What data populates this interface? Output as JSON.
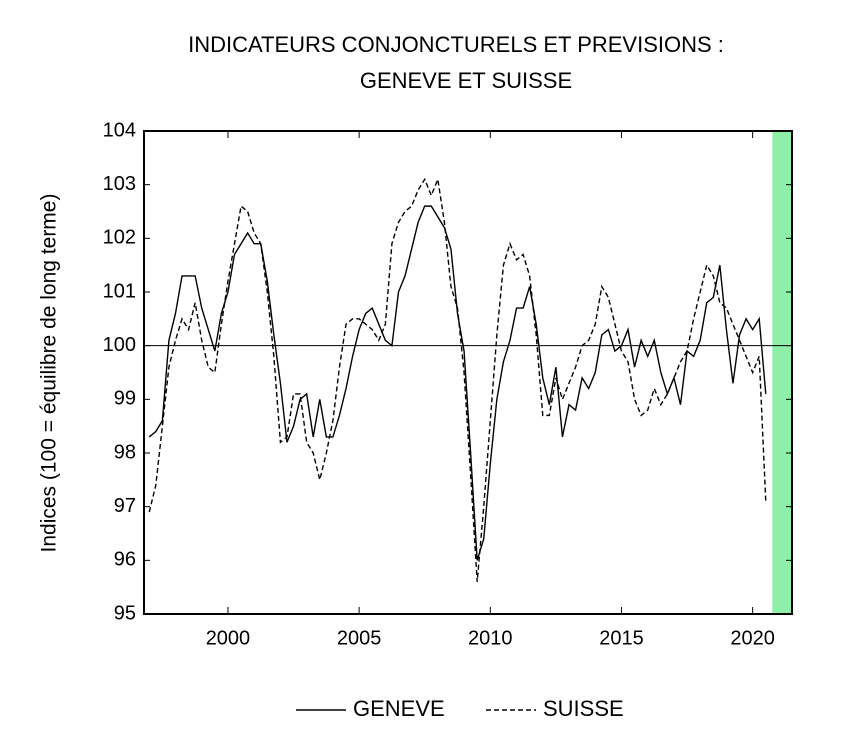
{
  "chart_data": {
    "type": "line",
    "title": [
      "INDICATEURS CONJONCTURELS ET PREVISIONS :",
      "GENEVE ET SUISSE"
    ],
    "ylabel": "Indices (100 = équilibre de long terme)",
    "x": [
      1997,
      1997.25,
      1997.5,
      1997.75,
      1998,
      1998.25,
      1998.5,
      1998.75,
      1999,
      1999.25,
      1999.5,
      1999.75,
      2000,
      2000.25,
      2000.5,
      2000.75,
      2001,
      2001.25,
      2001.5,
      2001.75,
      2002,
      2002.25,
      2002.5,
      2002.75,
      2003,
      2003.25,
      2003.5,
      2003.75,
      2004,
      2004.25,
      2004.5,
      2004.75,
      2005,
      2005.25,
      2005.5,
      2005.75,
      2006,
      2006.25,
      2006.5,
      2006.75,
      2007,
      2007.25,
      2007.5,
      2007.75,
      2008,
      2008.25,
      2008.5,
      2008.75,
      2009,
      2009.25,
      2009.5,
      2009.75,
      2010,
      2010.25,
      2010.5,
      2010.75,
      2011,
      2011.25,
      2011.5,
      2011.75,
      2012,
      2012.25,
      2012.5,
      2012.75,
      2013,
      2013.25,
      2013.5,
      2013.75,
      2014,
      2014.25,
      2014.5,
      2014.75,
      2015,
      2015.25,
      2015.5,
      2015.75,
      2016,
      2016.25,
      2016.5,
      2016.75,
      2017,
      2017.25,
      2017.5,
      2017.75,
      2018,
      2018.25,
      2018.5,
      2018.75,
      2019,
      2019.25,
      2019.5,
      2019.75,
      2020,
      2020.25,
      2020.5
    ],
    "series": [
      {
        "name": "GENEVE",
        "color": "#000000",
        "line_style": "solid",
        "values": [
          98.3,
          98.4,
          98.6,
          100.1,
          100.6,
          101.3,
          101.3,
          101.3,
          100.7,
          100.3,
          99.9,
          100.6,
          101.0,
          101.7,
          101.9,
          102.1,
          101.9,
          101.9,
          101.2,
          100.2,
          99.3,
          98.2,
          98.5,
          99.0,
          99.1,
          98.3,
          99.0,
          98.3,
          98.3,
          98.7,
          99.2,
          99.8,
          100.3,
          100.6,
          100.7,
          100.4,
          100.1,
          100.0,
          101.0,
          101.3,
          101.8,
          102.3,
          102.6,
          102.6,
          102.4,
          102.2,
          101.8,
          100.6,
          99.9,
          98.0,
          96.0,
          96.4,
          97.8,
          99.0,
          99.7,
          100.1,
          100.7,
          100.7,
          101.1,
          100.4,
          99.4,
          98.9,
          99.6,
          98.3,
          98.9,
          98.8,
          99.4,
          99.2,
          99.5,
          100.2,
          100.3,
          99.9,
          100.0,
          100.3,
          99.6,
          100.1,
          99.8,
          100.1,
          99.5,
          99.1,
          99.4,
          98.9,
          99.9,
          99.8,
          100.1,
          100.8,
          100.9,
          101.5,
          100.3,
          99.3,
          100.2,
          100.5,
          100.3,
          100.5,
          99.1
        ]
      },
      {
        "name": "SUISSE",
        "color": "#000000",
        "line_style": "dashed",
        "values": [
          96.9,
          97.4,
          98.5,
          99.6,
          100.1,
          100.5,
          100.3,
          100.8,
          100.1,
          99.6,
          99.5,
          100.4,
          101.2,
          101.9,
          102.6,
          102.5,
          102.1,
          101.9,
          101.0,
          99.8,
          98.2,
          98.3,
          99.1,
          99.1,
          98.2,
          98.0,
          97.5,
          98.0,
          98.6,
          99.6,
          100.4,
          100.5,
          100.5,
          100.4,
          100.3,
          100.1,
          100.4,
          101.9,
          102.3,
          102.5,
          102.6,
          102.9,
          103.1,
          102.8,
          103.1,
          102.3,
          101.1,
          100.7,
          99.5,
          97.6,
          95.6,
          97.0,
          98.6,
          100.2,
          101.5,
          101.9,
          101.6,
          101.7,
          101.3,
          100.2,
          98.7,
          98.7,
          99.4,
          99.0,
          99.3,
          99.6,
          100.0,
          100.1,
          100.4,
          101.1,
          100.9,
          100.4,
          99.9,
          99.7,
          99.0,
          98.7,
          98.8,
          99.2,
          98.9,
          99.1,
          99.4,
          99.7,
          99.9,
          100.5,
          101.0,
          101.5,
          101.3,
          100.8,
          100.7,
          100.4,
          100.1,
          99.8,
          99.5,
          99.8,
          97.1
        ]
      }
    ],
    "xlim": [
      1996.8,
      2021.5
    ],
    "xticks": [
      2000,
      2005,
      2010,
      2015,
      2020
    ],
    "ylim": [
      95,
      104
    ],
    "yticks": [
      95,
      96,
      97,
      98,
      99,
      100,
      101,
      102,
      103,
      104
    ],
    "reference_line": 100,
    "shaded_region": {
      "x": [
        2020.75,
        2021.5
      ],
      "color": "#8ef0a8"
    },
    "grid": false,
    "legend": "bottom"
  }
}
